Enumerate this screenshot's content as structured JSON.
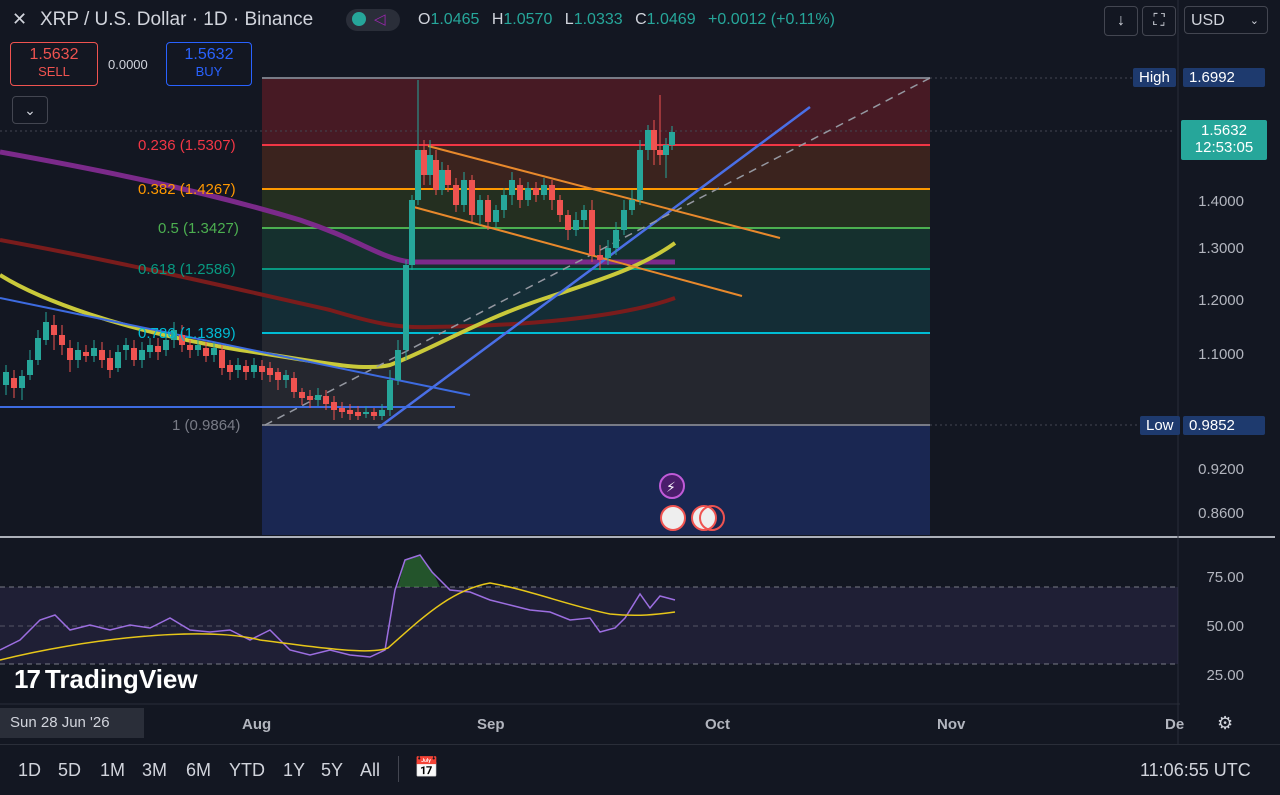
{
  "header": {
    "title": "XRP / U.S. Dollar · 1D · Binance",
    "ohlc": [
      {
        "k": "O",
        "v": "1.0465"
      },
      {
        "k": "H",
        "v": "1.0570"
      },
      {
        "k": "L",
        "v": "1.0333"
      },
      {
        "k": "C",
        "v": "1.0469"
      }
    ],
    "change": "+0.0012 (+0.11%)",
    "currency": "USD"
  },
  "trade": {
    "sell_price": "1.5632",
    "sell_label": "SELL",
    "spread": "0.0000",
    "buy_price": "1.5632",
    "buy_label": "BUY"
  },
  "fib_levels": [
    {
      "label": "0.236 (1.5307)",
      "color": "#f23645"
    },
    {
      "label": "0.382 (1.4267)",
      "color": "#ff9800"
    },
    {
      "label": "0.5 (1.3427)",
      "color": "#4caf50"
    },
    {
      "label": "0.618 (1.2586)",
      "color": "#089981"
    },
    {
      "label": "0.786 (1.1389)",
      "color": "#00bcd4"
    },
    {
      "label": "1 (0.9864)",
      "color": "#787b86"
    }
  ],
  "price_axis": {
    "ticks": [
      "1.4000",
      "1.3000",
      "1.2000",
      "1.1000",
      "0.9200",
      "0.8600"
    ],
    "high_label": "High",
    "high_value": "1.6992",
    "low_label": "Low",
    "low_value": "0.9852",
    "current_price": "1.5632",
    "countdown": "12:53:05"
  },
  "rsi_axis": {
    "ticks": [
      "75.00",
      "50.00",
      "25.00"
    ]
  },
  "time_axis": {
    "cursor_date": "Sun 28 Jun '26",
    "labels": [
      "Aug",
      "Sep",
      "Oct",
      "Nov",
      "De"
    ]
  },
  "branding": {
    "logo_text": "TradingView"
  },
  "timeframes": [
    "1D",
    "5D",
    "1M",
    "3M",
    "6M",
    "YTD",
    "1Y",
    "5Y",
    "All"
  ],
  "clock": "11:06:55 UTC",
  "colors": {
    "background": "#131722",
    "up": "#26a69a",
    "down": "#ef5350",
    "ma_yellow": "#c9c93a",
    "ma_purple": "#7b2a8a",
    "ma_red": "#8b1e1e",
    "trend_blue": "#3d6be0",
    "channel_orange": "#e8892c",
    "rsi_line": "#9c6ee0"
  },
  "icons": [
    "close-icon",
    "download-icon",
    "fullscreen-icon",
    "settings-icon",
    "calendar-icon",
    "lightning-event-icon",
    "us-flag-icon"
  ]
}
